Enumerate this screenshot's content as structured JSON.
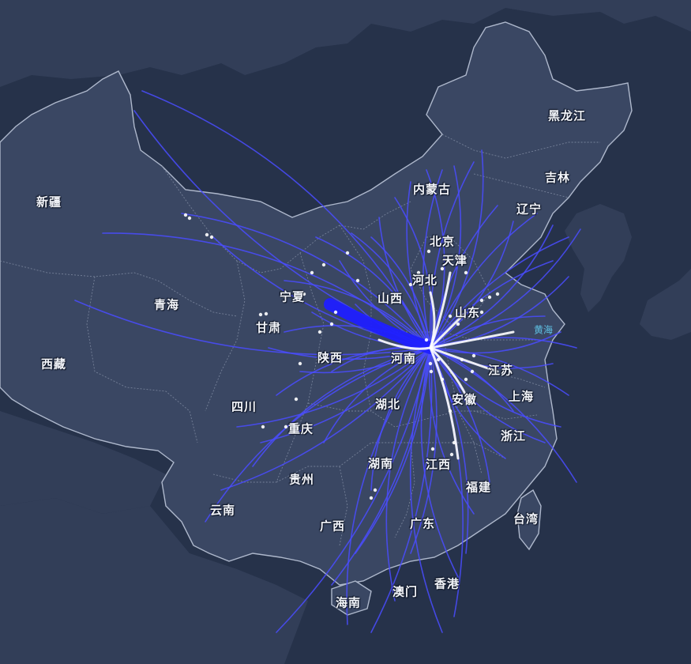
{
  "map": {
    "colors": {
      "background": "#2a354e",
      "land": "#3a4763",
      "land_dark": "#323e58",
      "sea": "#26324a",
      "border": "#aeb8cc",
      "province_border": "#8893aa",
      "flow_line": "#4a4cff",
      "flow_core": "#ffffff",
      "flow_thick": "#1f1fff"
    },
    "provinces": {
      "heilongjiang": "黑龙江",
      "jilin": "吉林",
      "liaoning": "辽宁",
      "neimenggu": "内蒙古",
      "beijing": "北京",
      "tianjin": "天津",
      "hebei": "河北",
      "shanxi": "山西",
      "shandong": "山东",
      "xinjiang": "新疆",
      "qinghai": "青海",
      "ningxia": "宁夏",
      "gansu": "甘肃",
      "xizang": "西藏",
      "shaanxi": "陕西",
      "henan": "河南",
      "jiangsu": "江苏",
      "anhui": "安徽",
      "shanghai": "上海",
      "sichuan": "四川",
      "hubei": "湖北",
      "chongqing": "重庆",
      "zhejiang": "浙江",
      "hunan": "湖南",
      "jiangxi": "江西",
      "guizhou": "贵州",
      "fujian": "福建",
      "yunnan": "云南",
      "guangxi": "广西",
      "guangdong": "广东",
      "taiwan": "台湾",
      "hainan": "海南",
      "macau": "澳门",
      "hongkong": "香港"
    },
    "seas": {
      "yellow_sea": "黄海"
    }
  }
}
